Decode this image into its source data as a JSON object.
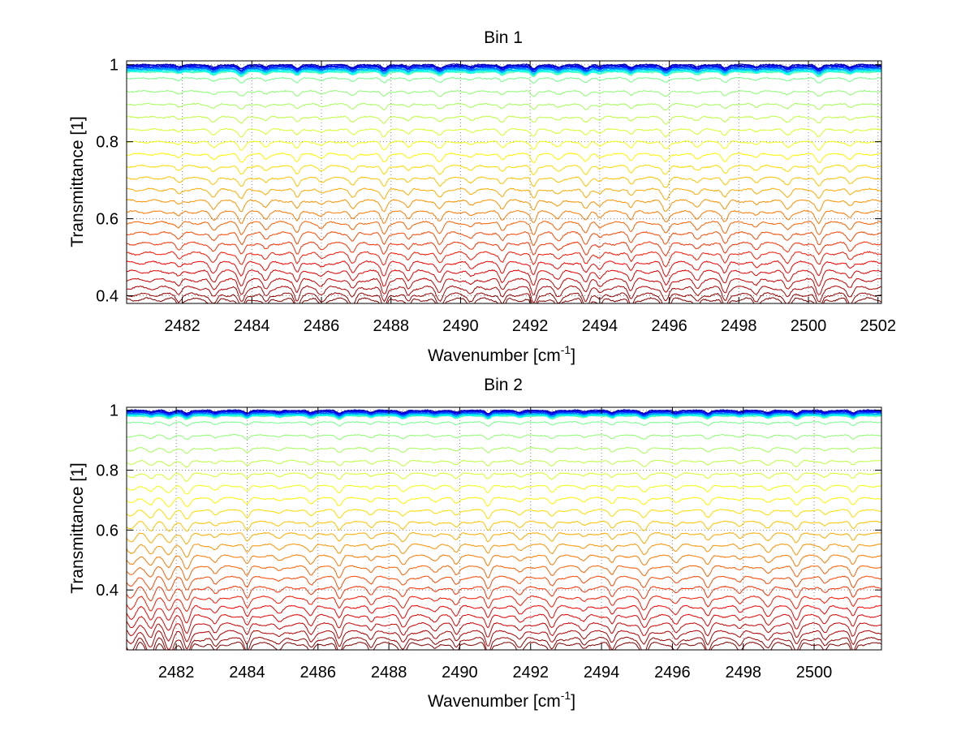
{
  "chart_data": [
    {
      "type": "line",
      "title": "Bin 1",
      "xlabel": "Wavenumber [cm",
      "xlabel_sup": "-1",
      "xlabel_end": "]",
      "ylabel": "Transmittance [1]",
      "xlim": [
        2480.4,
        2502.1
      ],
      "ylim": [
        0.38,
        1.01
      ],
      "xticks": [
        2482,
        2484,
        2486,
        2488,
        2490,
        2492,
        2494,
        2496,
        2498,
        2500,
        2502
      ],
      "xtick_labels": [
        "2482",
        "2484",
        "2486",
        "2488",
        "2490",
        "2492",
        "2494",
        "2496",
        "2498",
        "2500",
        "2502"
      ],
      "yticks": [
        0.4,
        0.6,
        0.8,
        1.0
      ],
      "ytick_labels": [
        "0.4",
        "0.6",
        "0.8",
        "1"
      ],
      "grid": true,
      "colormap": "jet",
      "series_count": 40,
      "transmittance_baselines": {
        "min": 0.39,
        "max": 1.0
      },
      "absorption_lines_cm-1": [
        2481.9,
        2482.9,
        2483.7,
        2484.4,
        2485.3,
        2486.0,
        2486.9,
        2487.8,
        2488.5,
        2489.4,
        2490.3,
        2491.2,
        2492.1,
        2492.8,
        2493.6,
        2494.0,
        2494.9,
        2495.9,
        2496.8,
        2497.6,
        2498.5,
        2499.4,
        2500.3,
        2501.2
      ]
    },
    {
      "type": "line",
      "title": "Bin 2",
      "xlabel": "Wavenumber [cm",
      "xlabel_sup": "-1",
      "xlabel_end": "]",
      "ylabel": "Transmittance [1]",
      "xlim": [
        2480.6,
        2501.9
      ],
      "ylim": [
        0.2,
        1.01
      ],
      "xticks": [
        2482,
        2484,
        2486,
        2488,
        2490,
        2492,
        2494,
        2496,
        2498,
        2500
      ],
      "xtick_labels": [
        "2482",
        "2484",
        "2486",
        "2488",
        "2490",
        "2492",
        "2494",
        "2496",
        "2498",
        "2500"
      ],
      "yticks": [
        0.4,
        0.6,
        0.8,
        1.0
      ],
      "ytick_labels": [
        "0.4",
        "0.6",
        "0.8",
        "1"
      ],
      "grid": true,
      "colormap": "jet",
      "series_count": 40,
      "transmittance_baselines": {
        "min": 0.22,
        "max": 1.0
      },
      "absorption_lines_cm-1": [
        2481.3,
        2481.8,
        2482.3,
        2483.1,
        2484.0,
        2484.9,
        2485.8,
        2486.6,
        2487.5,
        2488.4,
        2489.3,
        2489.9,
        2490.8,
        2491.7,
        2492.6,
        2493.5,
        2494.3,
        2495.2,
        2496.1,
        2497.0,
        2497.9,
        2498.7,
        2499.5,
        2500.3,
        2501.1
      ]
    }
  ]
}
